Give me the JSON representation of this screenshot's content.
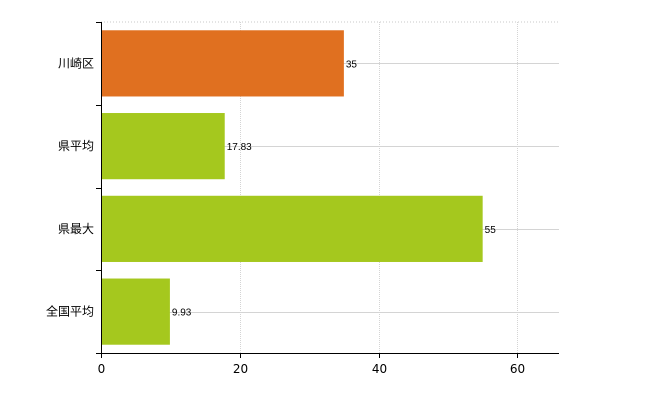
{
  "chart_data": {
    "type": "bar",
    "orientation": "horizontal",
    "title": "",
    "xlabel": "",
    "ylabel": "",
    "categories": [
      "川崎区",
      "県平均",
      "県最大",
      "全国平均"
    ],
    "values": [
      35,
      17.83,
      55,
      9.93
    ],
    "value_labels": [
      "35",
      "17.83",
      "55",
      "9.93"
    ],
    "bar_colors": [
      "#e07020",
      "#a5c81e",
      "#a5c81e",
      "#a5c81e"
    ],
    "xlim": [
      0,
      66
    ],
    "x_ticks": [
      0,
      20,
      40,
      60
    ],
    "x_tick_labels": [
      "0",
      "20",
      "40",
      "60"
    ],
    "grid": true,
    "legend": "none"
  }
}
